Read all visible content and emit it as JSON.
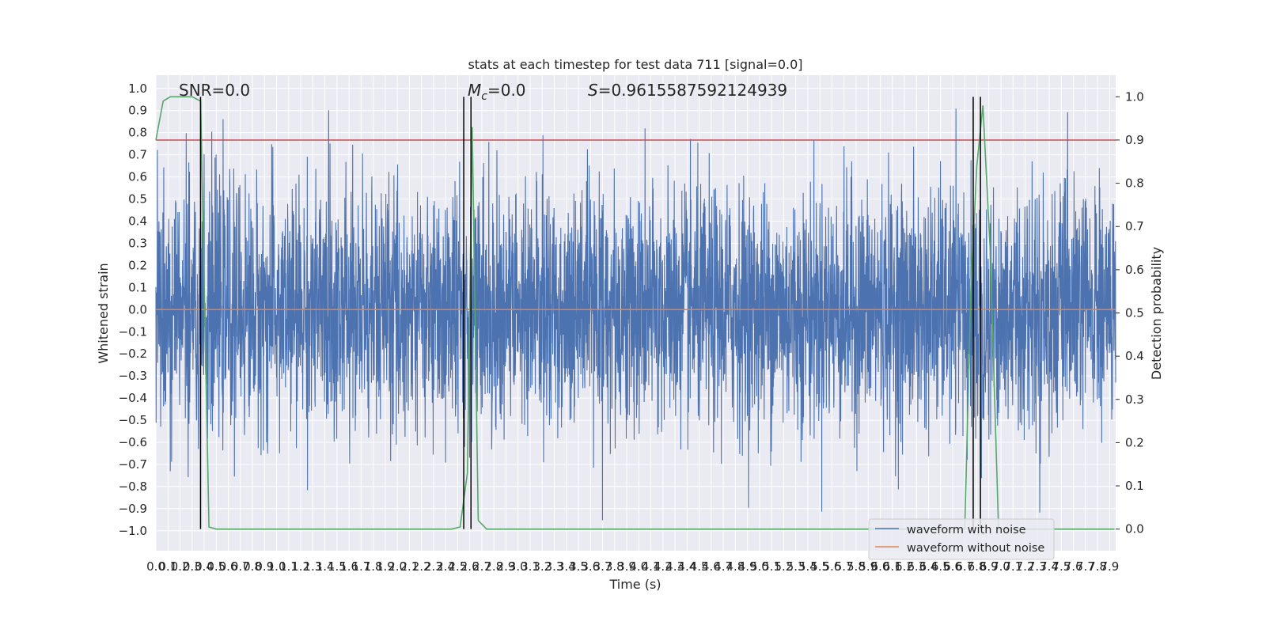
{
  "chart_data": {
    "type": "line",
    "title": "stats at each timestep for test data 711 [signal=0.0]",
    "xlabel": "Time (s)",
    "ylabel": "Whitened strain",
    "y2label": "Detection probability",
    "xlim": [
      0.0,
      7.95
    ],
    "ylim": [
      -1.09,
      1.06
    ],
    "y2lim": [
      -0.05,
      1.05
    ],
    "yticks": [
      -1.0,
      -0.9,
      -0.8,
      -0.7,
      -0.6,
      -0.5,
      -0.4,
      -0.3,
      -0.2,
      -0.1,
      0.0,
      0.1,
      0.2,
      0.3,
      0.4,
      0.5,
      0.6,
      0.7,
      0.8,
      0.9,
      1.0
    ],
    "ytick_labels": [
      "−1.0",
      "−0.9",
      "−0.8",
      "−0.7",
      "−0.6",
      "−0.5",
      "−0.4",
      "−0.3",
      "−0.2",
      "−0.1",
      "0.0",
      "0.1",
      "0.2",
      "0.3",
      "0.4",
      "0.5",
      "0.6",
      "0.7",
      "0.8",
      "0.9",
      "1.0"
    ],
    "y2ticks": [
      0.0,
      0.1,
      0.2,
      0.3,
      0.4,
      0.5,
      0.6,
      0.7,
      0.8,
      0.9,
      1.0
    ],
    "y2tick_labels": [
      "0.0",
      "0.1",
      "0.2",
      "0.3",
      "0.4",
      "0.5",
      "0.6",
      "0.7",
      "0.8",
      "0.9",
      "1.0"
    ],
    "xticks_step": 0.1,
    "xticks_count": 80,
    "grid": true,
    "annotations": {
      "snr": "SNR=0.0",
      "mc": "=0.0",
      "mc_symbol": "M",
      "mc_sub": "c",
      "s": "=0.9615587592124939",
      "s_symbol": "S"
    },
    "threshold": {
      "value": 0.9,
      "axis": "y2",
      "color": "#c44e52"
    },
    "signal_without_noise": {
      "value": 0.0,
      "color": "#dd8452"
    },
    "vertical_markers": [
      0.37,
      2.55,
      2.61,
      6.77,
      6.83
    ],
    "detection_probability": {
      "name": "Detection probability",
      "color": "#55a868",
      "t": [
        0.0,
        0.06,
        0.12,
        0.18,
        0.24,
        0.3,
        0.37,
        0.44,
        0.5,
        2.45,
        2.52,
        2.58,
        2.62,
        2.67,
        2.74,
        6.7,
        6.75,
        6.8,
        6.85,
        6.91,
        6.98,
        7.94
      ],
      "p": [
        0.9,
        0.99,
        1.0,
        1.0,
        1.0,
        1.0,
        0.99,
        0.005,
        0.0,
        0.0,
        0.005,
        0.13,
        0.93,
        0.02,
        0.0,
        0.0,
        0.55,
        0.84,
        0.98,
        0.65,
        0.0,
        0.0
      ]
    },
    "series": [
      {
        "name": "waveform with noise",
        "color": "#4c72b0",
        "amplitude_range": [
          -0.98,
          0.93
        ]
      },
      {
        "name": "waveform without noise",
        "color": "#dd8452",
        "value": 0.0
      }
    ],
    "legend_placement": "lower-right"
  }
}
